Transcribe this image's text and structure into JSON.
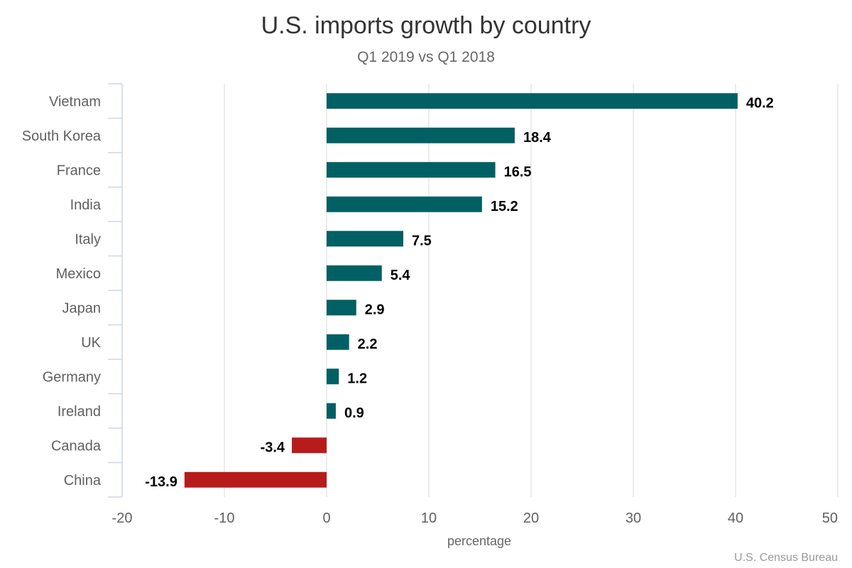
{
  "chart_data": {
    "type": "bar",
    "orientation": "horizontal",
    "title": "U.S. imports growth by country",
    "subtitle": "Q1 2019 vs Q1 2018",
    "categories": [
      "Vietnam",
      "South Korea",
      "France",
      "India",
      "Italy",
      "Mexico",
      "Japan",
      "UK",
      "Germany",
      "Ireland",
      "Canada",
      "China"
    ],
    "values": [
      40.2,
      18.4,
      16.5,
      15.2,
      7.5,
      5.4,
      2.9,
      2.2,
      1.2,
      0.9,
      -3.4,
      -13.9
    ],
    "data_labels": [
      "40.2",
      "18.4",
      "16.5",
      "15.2",
      "7.5",
      "5.4",
      "2.9",
      "2.2",
      "1.2",
      "0.9",
      "-3.4",
      "-13.9"
    ],
    "xlabel": "percentage",
    "ylabel": "",
    "xlim": [
      -20,
      50
    ],
    "xticks": [
      -20,
      -10,
      0,
      10,
      20,
      30,
      40,
      50
    ],
    "xtick_labels": [
      "-20",
      "-10",
      "0",
      "10",
      "20",
      "30",
      "40",
      "50"
    ],
    "grid": true,
    "legend": "none",
    "colors": {
      "positive": "#006064",
      "negative": "#b71c1c"
    },
    "credit": "U.S. Census Bureau"
  }
}
